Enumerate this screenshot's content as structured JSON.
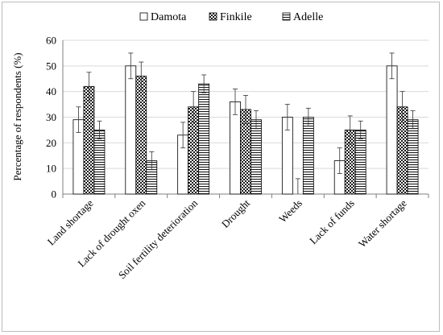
{
  "chart_data": {
    "type": "bar",
    "ylabel": "Percentage  of respondents  (%)",
    "ylim": [
      0,
      60
    ],
    "yticks": [
      "0",
      "10",
      "20",
      "30",
      "40",
      "50",
      "60"
    ],
    "grid": true,
    "legend_position": "top",
    "categories": [
      "Land shortage",
      "Lack of drought oxen",
      "Soil fertility deterioration",
      "Drought",
      "Weeds",
      "Lack of funds",
      "Water shortage"
    ],
    "series": [
      {
        "name": "Damota",
        "pattern": "blank",
        "values": [
          29,
          50,
          23,
          36,
          30,
          13,
          50
        ],
        "errors": [
          5,
          5,
          5,
          5,
          5,
          5,
          5
        ]
      },
      {
        "name": "Finkile",
        "pattern": "checkered",
        "values": [
          42,
          46,
          34,
          33,
          0,
          25,
          34
        ],
        "errors": [
          5.5,
          5.5,
          6,
          5.5,
          6,
          5.5,
          6
        ]
      },
      {
        "name": "Adelle",
        "pattern": "horizontal-stripes",
        "values": [
          25,
          13,
          43,
          29,
          30,
          25,
          29
        ],
        "errors": [
          3.5,
          3.5,
          3.5,
          3.5,
          3.5,
          3.5,
          3.5
        ]
      }
    ]
  }
}
